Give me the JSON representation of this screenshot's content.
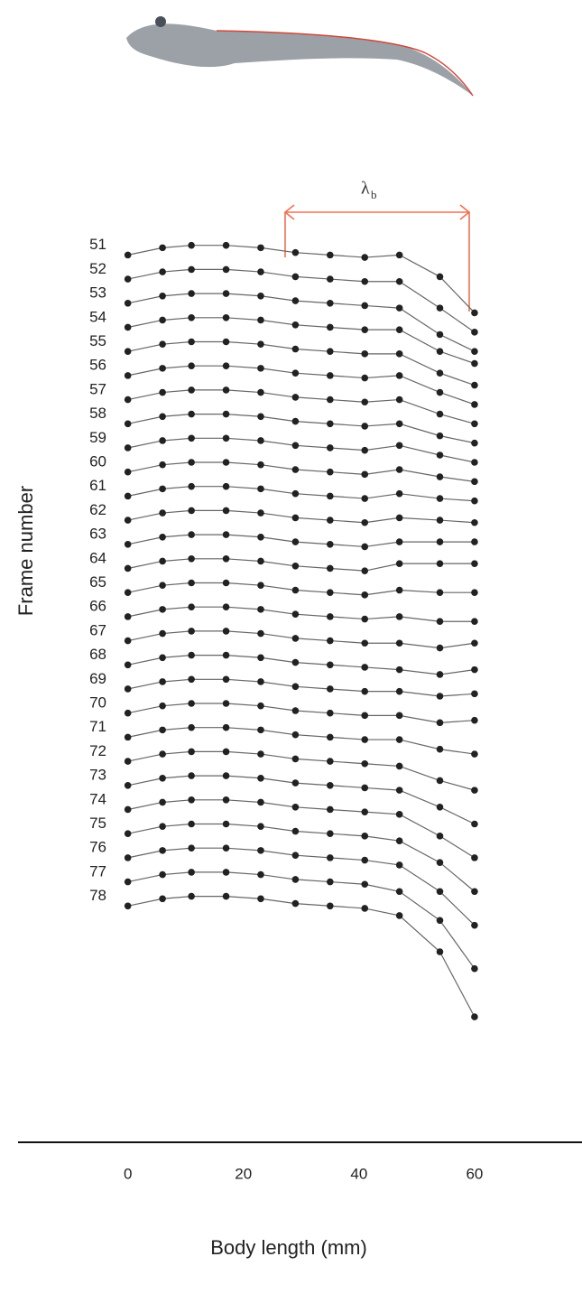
{
  "chart_data": {
    "type": "line",
    "x_label": "Body length (mm)",
    "y_label": "Frame number",
    "annotation_symbol": "λ",
    "annotation_subscript": "b",
    "xlim": [
      -19,
      78.5
    ],
    "xticks": [
      0,
      20,
      40,
      60
    ],
    "ylim": [
      85,
      50
    ],
    "yticks": [
      51,
      52,
      53,
      54,
      55,
      56,
      57,
      58,
      59,
      60,
      61,
      62,
      63,
      64,
      65,
      66,
      67,
      68,
      69,
      70,
      71,
      72,
      73,
      74,
      75,
      76,
      77,
      78
    ],
    "line_color": "#666666",
    "point_color": "#222222",
    "x": [
      0,
      6,
      11,
      17,
      23,
      29,
      35,
      41,
      47,
      54,
      60
    ],
    "series": [
      {
        "values": [
          51.4,
          51.1,
          51,
          51,
          51.1,
          51.3,
          51.4,
          51.5,
          51.4,
          52.3,
          53.8
        ]
      },
      {
        "values": [
          52.4,
          52.1,
          52,
          52,
          52.1,
          52.3,
          52.4,
          52.5,
          52.5,
          53.6,
          54.6
        ]
      },
      {
        "values": [
          53.4,
          53.1,
          53,
          53,
          53.1,
          53.3,
          53.4,
          53.5,
          53.6,
          54.7,
          55.4
        ]
      },
      {
        "values": [
          54.4,
          54.1,
          54,
          54,
          54.1,
          54.3,
          54.4,
          54.5,
          54.5,
          55.4,
          55.9
        ]
      },
      {
        "values": [
          55.4,
          55.1,
          55,
          55,
          55.1,
          55.3,
          55.4,
          55.5,
          55.5,
          56.3,
          56.8
        ]
      },
      {
        "values": [
          56.4,
          56.1,
          56,
          56,
          56.1,
          56.3,
          56.4,
          56.5,
          56.4,
          57.1,
          57.6
        ]
      },
      {
        "values": [
          57.4,
          57.1,
          57,
          57,
          57.1,
          57.3,
          57.4,
          57.5,
          57.4,
          58,
          58.4
        ]
      },
      {
        "values": [
          58.4,
          58.1,
          58,
          58,
          58.1,
          58.3,
          58.4,
          58.5,
          58.4,
          58.9,
          59.2
        ]
      },
      {
        "values": [
          59.4,
          59.1,
          59,
          59,
          59.1,
          59.3,
          59.4,
          59.5,
          59.3,
          59.7,
          60
        ]
      },
      {
        "values": [
          60.4,
          60.1,
          60,
          60,
          60.1,
          60.3,
          60.4,
          60.5,
          60.3,
          60.6,
          60.8
        ]
      },
      {
        "values": [
          61.4,
          61.1,
          61,
          61,
          61.1,
          61.3,
          61.4,
          61.5,
          61.3,
          61.5,
          61.6
        ]
      },
      {
        "values": [
          62.4,
          62.1,
          62,
          62,
          62.1,
          62.3,
          62.4,
          62.5,
          62.3,
          62.4,
          62.5
        ]
      },
      {
        "values": [
          63.4,
          63.1,
          63,
          63,
          63.1,
          63.3,
          63.4,
          63.5,
          63.3,
          63.3,
          63.3
        ]
      },
      {
        "values": [
          64.4,
          64.1,
          64,
          64,
          64.1,
          64.3,
          64.4,
          64.5,
          64.2,
          64.2,
          64.2
        ]
      },
      {
        "values": [
          65.4,
          65.1,
          65,
          65,
          65.1,
          65.3,
          65.4,
          65.5,
          65.3,
          65.4,
          65.4
        ]
      },
      {
        "values": [
          66.4,
          66.1,
          66,
          66,
          66.1,
          66.3,
          66.4,
          66.5,
          66.4,
          66.6,
          66.6
        ]
      },
      {
        "values": [
          67.4,
          67.1,
          67,
          67,
          67.1,
          67.3,
          67.4,
          67.5,
          67.5,
          67.7,
          67.5
        ]
      },
      {
        "values": [
          68.4,
          68.1,
          68,
          68,
          68.1,
          68.3,
          68.4,
          68.5,
          68.6,
          68.8,
          68.6
        ]
      },
      {
        "values": [
          69.4,
          69.1,
          69,
          69,
          69.1,
          69.3,
          69.4,
          69.5,
          69.5,
          69.7,
          69.6
        ]
      },
      {
        "values": [
          70.4,
          70.1,
          70,
          70,
          70.1,
          70.3,
          70.4,
          70.5,
          70.5,
          70.8,
          70.7
        ]
      },
      {
        "values": [
          71.4,
          71.1,
          71,
          71,
          71.1,
          71.3,
          71.4,
          71.5,
          71.5,
          71.9,
          72.1
        ]
      },
      {
        "values": [
          72.4,
          72.1,
          72,
          72,
          72.1,
          72.3,
          72.4,
          72.5,
          72.6,
          73.2,
          73.6
        ]
      },
      {
        "values": [
          73.4,
          73.1,
          73,
          73,
          73.1,
          73.3,
          73.4,
          73.5,
          73.6,
          74.3,
          75
        ]
      },
      {
        "values": [
          74.4,
          74.1,
          74,
          74,
          74.1,
          74.3,
          74.4,
          74.5,
          74.6,
          75.5,
          76.4
        ]
      },
      {
        "values": [
          75.4,
          75.1,
          75,
          75,
          75.1,
          75.3,
          75.4,
          75.5,
          75.7,
          76.6,
          77.8
        ]
      },
      {
        "values": [
          76.4,
          76.1,
          76,
          76,
          76.1,
          76.3,
          76.4,
          76.5,
          76.7,
          77.8,
          79.2
        ]
      },
      {
        "values": [
          77.4,
          77.1,
          77,
          77,
          77.1,
          77.3,
          77.4,
          77.5,
          77.8,
          79,
          81
        ]
      },
      {
        "values": [
          78.4,
          78.1,
          78,
          78,
          78.1,
          78.3,
          78.4,
          78.5,
          78.8,
          80.3,
          83
        ]
      }
    ]
  }
}
